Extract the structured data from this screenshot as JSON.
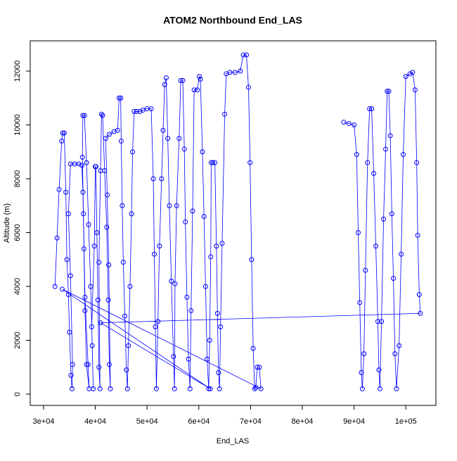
{
  "chart_data": {
    "type": "line",
    "title": "ATOM2 Northbound End_LAS",
    "x_label": "End_LAS",
    "y_label": "Altitude (m)",
    "color": "#0000ff",
    "x": [
      32200,
      32600,
      33000,
      33500,
      33700,
      34000,
      34300,
      34500,
      34800,
      35000,
      35300,
      35500,
      35600,
      35200,
      34800,
      35200,
      36000,
      36800,
      37400,
      37600,
      37800,
      38000,
      38300,
      38800,
      38600,
      38000,
      37700,
      37500,
      37600,
      37900,
      38300,
      38700,
      39100,
      39400,
      39600,
      39300,
      39800,
      40000,
      40100,
      40300,
      40500,
      40700,
      40900,
      40700,
      41000,
      41200,
      41400,
      41800,
      42200,
      42500,
      42700,
      42900,
      42600,
      42300,
      42000,
      42700,
      43600,
      44300,
      44600,
      44900,
      45000,
      45200,
      45400,
      45700,
      46000,
      46200,
      46400,
      46700,
      47000,
      47200,
      47500,
      48000,
      48600,
      49200,
      50000,
      50800,
      51200,
      51400,
      51600,
      51800,
      52100,
      52400,
      52800,
      53100,
      53400,
      53700,
      54000,
      54300,
      54700,
      55100,
      55300,
      55400,
      55700,
      56200,
      56500,
      56900,
      57200,
      57400,
      57700,
      58000,
      58300,
      58500,
      58800,
      59100,
      59700,
      60100,
      60300,
      60700,
      61000,
      61300,
      61600,
      61900,
      62100,
      62300,
      62400,
      62700,
      63100,
      63400,
      63600,
      63800,
      64000,
      64200,
      64500,
      65000,
      65300,
      66000,
      67000,
      68000,
      68600,
      69200,
      69600,
      69900,
      70200,
      70500,
      70800,
      71000,
      71300,
      71700,
      72000,
      33600,
      62200,
      41000,
      102800,
      102600,
      102300,
      102100,
      101800,
      101300,
      100800,
      100000,
      99500,
      99100,
      98700,
      98200,
      97900,
      97600,
      97300,
      97000,
      96700,
      96400,
      96100,
      95700,
      95300,
      95000,
      94800,
      94600,
      94200,
      93800,
      93400,
      93000,
      92600,
      92200,
      91900,
      91600,
      91400,
      91100,
      90800,
      90500,
      90000,
      89000,
      88000
    ],
    "values": [
      4000,
      5800,
      7600,
      9400,
      9700,
      9700,
      7500,
      5000,
      3700,
      2300,
      700,
      200,
      1100,
      4400,
      6700,
      8550,
      8550,
      8550,
      8500,
      7500,
      5400,
      3100,
      1100,
      200,
      1100,
      3600,
      6700,
      8800,
      10350,
      10350,
      8600,
      6300,
      4000,
      1800,
      200,
      2500,
      5500,
      8450,
      8450,
      6000,
      3500,
      1000,
      200,
      4900,
      8300,
      10400,
      10350,
      8300,
      6200,
      3500,
      1100,
      200,
      4800,
      7400,
      9500,
      9650,
      9750,
      9800,
      11000,
      11000,
      9400,
      7000,
      4900,
      2900,
      900,
      200,
      1800,
      4000,
      6700,
      9000,
      10500,
      10500,
      10500,
      10550,
      10600,
      10600,
      8000,
      5200,
      2500,
      200,
      2700,
      5500,
      8000,
      9800,
      11500,
      11750,
      9500,
      7000,
      4200,
      1400,
      200,
      4100,
      7000,
      9500,
      11650,
      11650,
      9100,
      6400,
      3600,
      1300,
      200,
      3100,
      6800,
      11300,
      11300,
      11800,
      11700,
      9000,
      6600,
      4000,
      1300,
      200,
      2000,
      5100,
      8600,
      8600,
      8600,
      5500,
      3000,
      800,
      200,
      2500,
      5600,
      10400,
      11900,
      11950,
      11950,
      12000,
      12600,
      12600,
      11400,
      8600,
      5000,
      1700,
      200,
      250,
      1000,
      1000,
      200,
      3900,
      200,
      2650,
      3000,
      3700,
      5900,
      8600,
      11300,
      11950,
      11900,
      11800,
      8900,
      5200,
      1800,
      200,
      1500,
      4300,
      6700,
      9600,
      11250,
      11250,
      9100,
      6500,
      2700,
      200,
      900,
      2700,
      5500,
      8200,
      10600,
      10600,
      8600,
      4600,
      1500,
      200,
      800,
      3400,
      6000,
      8900,
      10000,
      10050,
      10100
    ],
    "xlim": [
      27420,
      105815
    ],
    "ylim": [
      -418,
      13124
    ],
    "xticks": [
      {
        "value": 30000,
        "label": "3e+04"
      },
      {
        "value": 40000,
        "label": "4e+04"
      },
      {
        "value": 50000,
        "label": "5e+04"
      },
      {
        "value": 60000,
        "label": "6e+04"
      },
      {
        "value": 70000,
        "label": "7e+04"
      },
      {
        "value": 80000,
        "label": "8e+04"
      },
      {
        "value": 90000,
        "label": "9e+04"
      },
      {
        "value": 100000,
        "label": "1e+05"
      }
    ],
    "yticks": [
      0,
      2000,
      4000,
      6000,
      8000,
      10000,
      12000
    ]
  }
}
